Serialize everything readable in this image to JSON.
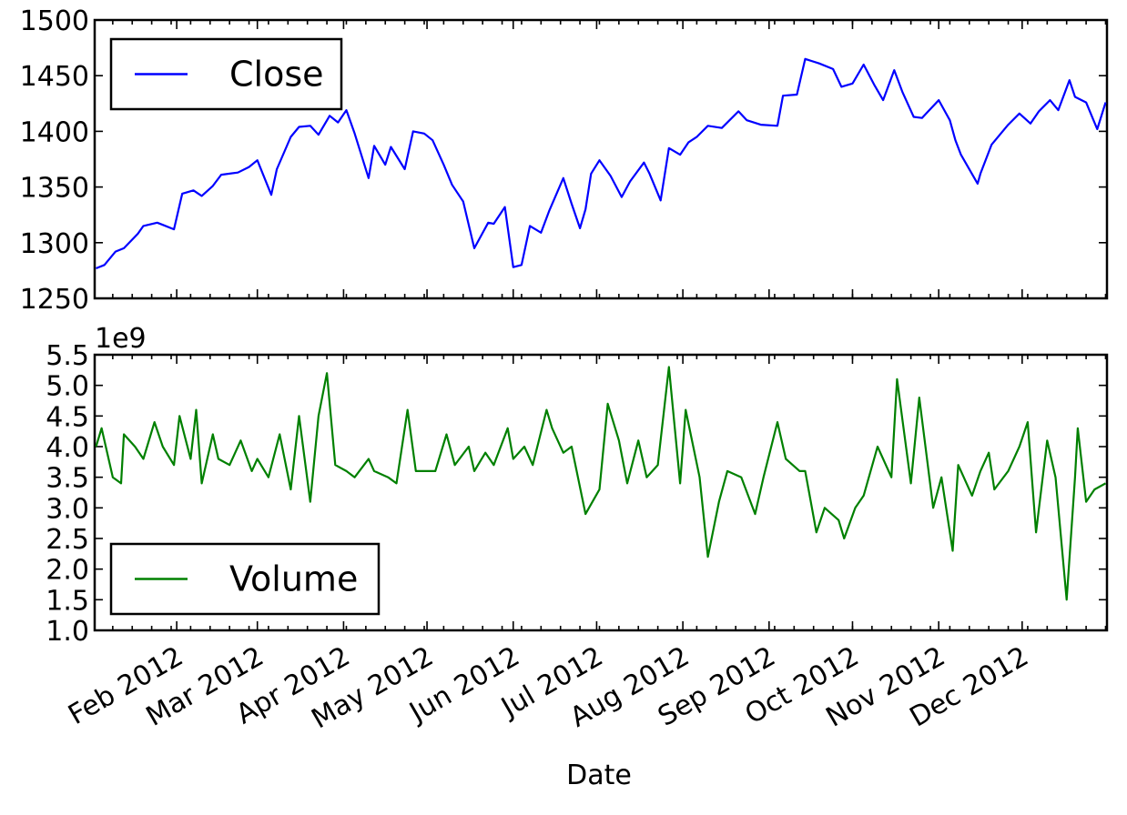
{
  "chart_data": [
    {
      "type": "line",
      "panel": "top",
      "title": "",
      "xlabel": "",
      "ylabel": "",
      "ylim": [
        1250,
        1500
      ],
      "yticks": [
        "1250",
        "1300",
        "1350",
        "1400",
        "1450",
        "1500"
      ],
      "x_range": [
        "2012-01-03",
        "2012-12-31"
      ],
      "grid": false,
      "legend": {
        "entries": [
          "Close"
        ],
        "placement": "upper left"
      },
      "series": [
        {
          "name": "Close",
          "color": "#0000ff",
          "x": [
            "2012-01-03",
            "2012-01-06",
            "2012-01-10",
            "2012-01-13",
            "2012-01-18",
            "2012-01-20",
            "2012-01-25",
            "2012-01-27",
            "2012-01-31",
            "2012-02-03",
            "2012-02-07",
            "2012-02-10",
            "2012-02-14",
            "2012-02-17",
            "2012-02-23",
            "2012-02-27",
            "2012-03-01",
            "2012-03-06",
            "2012-03-08",
            "2012-03-13",
            "2012-03-16",
            "2012-03-20",
            "2012-03-23",
            "2012-03-27",
            "2012-03-30",
            "2012-04-02",
            "2012-04-05",
            "2012-04-10",
            "2012-04-12",
            "2012-04-16",
            "2012-04-18",
            "2012-04-23",
            "2012-04-26",
            "2012-04-30",
            "2012-05-03",
            "2012-05-07",
            "2012-05-10",
            "2012-05-14",
            "2012-05-18",
            "2012-05-23",
            "2012-05-25",
            "2012-05-29",
            "2012-06-01",
            "2012-06-04",
            "2012-06-07",
            "2012-06-11",
            "2012-06-14",
            "2012-06-19",
            "2012-06-22",
            "2012-06-25",
            "2012-06-27",
            "2012-06-29",
            "2012-07-02",
            "2012-07-06",
            "2012-07-10",
            "2012-07-13",
            "2012-07-18",
            "2012-07-20",
            "2012-07-24",
            "2012-07-27",
            "2012-07-31",
            "2012-08-03",
            "2012-08-06",
            "2012-08-10",
            "2012-08-15",
            "2012-08-21",
            "2012-08-24",
            "2012-08-29",
            "2012-09-04",
            "2012-09-06",
            "2012-09-11",
            "2012-09-14",
            "2012-09-19",
            "2012-09-24",
            "2012-09-27",
            "2012-10-01",
            "2012-10-05",
            "2012-10-09",
            "2012-10-12",
            "2012-10-16",
            "2012-10-19",
            "2012-10-23",
            "2012-10-26",
            "2012-11-01",
            "2012-11-05",
            "2012-11-07",
            "2012-11-09",
            "2012-11-15",
            "2012-11-16",
            "2012-11-20",
            "2012-11-26",
            "2012-11-30",
            "2012-12-04",
            "2012-12-07",
            "2012-12-11",
            "2012-12-14",
            "2012-12-18",
            "2012-12-20",
            "2012-12-24",
            "2012-12-28",
            "2012-12-31"
          ],
          "y": [
            1277,
            1280,
            1292,
            1295,
            1308,
            1315,
            1318,
            1316,
            1312,
            1344,
            1347,
            1342,
            1351,
            1361,
            1363,
            1368,
            1374,
            1343,
            1366,
            1395,
            1404,
            1405,
            1397,
            1414,
            1408,
            1419,
            1398,
            1358,
            1387,
            1370,
            1386,
            1366,
            1400,
            1398,
            1392,
            1370,
            1352,
            1337,
            1295,
            1318,
            1317,
            1332,
            1278,
            1280,
            1315,
            1309,
            1329,
            1358,
            1335,
            1313,
            1330,
            1362,
            1374,
            1360,
            1341,
            1355,
            1372,
            1362,
            1338,
            1385,
            1379,
            1390,
            1395,
            1405,
            1403,
            1418,
            1410,
            1406,
            1405,
            1432,
            1433,
            1465,
            1461,
            1456,
            1440,
            1443,
            1460,
            1441,
            1428,
            1455,
            1435,
            1413,
            1412,
            1428,
            1410,
            1392,
            1379,
            1353,
            1362,
            1388,
            1406,
            1416,
            1407,
            1418,
            1428,
            1419,
            1446,
            1431,
            1426,
            1402,
            1426
          ]
        }
      ]
    },
    {
      "type": "line",
      "panel": "bottom",
      "title": "",
      "xlabel": "Date",
      "ylabel": "",
      "scale_label": "1e9",
      "ylim": [
        1.0,
        5.5
      ],
      "yticks": [
        "1.0",
        "1.5",
        "2.0",
        "2.5",
        "3.0",
        "3.5",
        "4.0",
        "4.5",
        "5.0",
        "5.5"
      ],
      "x_range": [
        "2012-01-03",
        "2012-12-31"
      ],
      "xtick_labels": [
        "Feb 2012",
        "Mar 2012",
        "Apr 2012",
        "May 2012",
        "Jun 2012",
        "Jul 2012",
        "Aug 2012",
        "Sep 2012",
        "Oct 2012",
        "Nov 2012",
        "Dec 2012"
      ],
      "xtick_dates": [
        "2012-02-01",
        "2012-03-01",
        "2012-04-01",
        "2012-05-01",
        "2012-06-01",
        "2012-07-01",
        "2012-08-01",
        "2012-09-01",
        "2012-10-01",
        "2012-11-01",
        "2012-12-01"
      ],
      "grid": false,
      "legend": {
        "entries": [
          "Volume"
        ],
        "placement": "lower left"
      },
      "series": [
        {
          "name": "Volume",
          "color": "#008000",
          "x": [
            "2012-01-03",
            "2012-01-05",
            "2012-01-09",
            "2012-01-12",
            "2012-01-13",
            "2012-01-17",
            "2012-01-20",
            "2012-01-24",
            "2012-01-27",
            "2012-01-31",
            "2012-02-02",
            "2012-02-06",
            "2012-02-08",
            "2012-02-10",
            "2012-02-14",
            "2012-02-16",
            "2012-02-20",
            "2012-02-24",
            "2012-02-28",
            "2012-03-01",
            "2012-03-05",
            "2012-03-09",
            "2012-03-13",
            "2012-03-16",
            "2012-03-20",
            "2012-03-23",
            "2012-03-26",
            "2012-03-29",
            "2012-04-02",
            "2012-04-05",
            "2012-04-10",
            "2012-04-12",
            "2012-04-17",
            "2012-04-20",
            "2012-04-24",
            "2012-04-27",
            "2012-05-01",
            "2012-05-04",
            "2012-05-08",
            "2012-05-11",
            "2012-05-16",
            "2012-05-18",
            "2012-05-22",
            "2012-05-25",
            "2012-05-30",
            "2012-06-01",
            "2012-06-05",
            "2012-06-08",
            "2012-06-13",
            "2012-06-15",
            "2012-06-19",
            "2012-06-22",
            "2012-06-27",
            "2012-07-02",
            "2012-07-05",
            "2012-07-09",
            "2012-07-12",
            "2012-07-16",
            "2012-07-19",
            "2012-07-23",
            "2012-07-27",
            "2012-07-31",
            "2012-08-02",
            "2012-08-07",
            "2012-08-10",
            "2012-08-14",
            "2012-08-17",
            "2012-08-22",
            "2012-08-27",
            "2012-08-30",
            "2012-09-04",
            "2012-09-07",
            "2012-09-12",
            "2012-09-14",
            "2012-09-18",
            "2012-09-21",
            "2012-09-26",
            "2012-09-28",
            "2012-10-02",
            "2012-10-05",
            "2012-10-10",
            "2012-10-15",
            "2012-10-17",
            "2012-10-22",
            "2012-10-25",
            "2012-10-30",
            "2012-11-02",
            "2012-11-06",
            "2012-11-08",
            "2012-11-13",
            "2012-11-16",
            "2012-11-19",
            "2012-11-21",
            "2012-11-26",
            "2012-11-30",
            "2012-12-03",
            "2012-12-06",
            "2012-12-10",
            "2012-12-13",
            "2012-12-17",
            "2012-12-20",
            "2012-12-21",
            "2012-12-24",
            "2012-12-27",
            "2012-12-31"
          ],
          "y": [
            4.0,
            4.3,
            3.5,
            3.4,
            4.2,
            4.0,
            3.8,
            4.4,
            4.0,
            3.7,
            4.5,
            3.8,
            4.6,
            3.4,
            4.2,
            3.8,
            3.7,
            4.1,
            3.6,
            3.8,
            3.5,
            4.2,
            3.3,
            4.5,
            3.1,
            4.5,
            5.2,
            3.7,
            3.6,
            3.5,
            3.8,
            3.6,
            3.5,
            3.4,
            4.6,
            3.6,
            3.6,
            3.6,
            4.2,
            3.7,
            4.0,
            3.6,
            3.9,
            3.7,
            4.3,
            3.8,
            4.0,
            3.7,
            4.6,
            4.3,
            3.9,
            4.0,
            2.9,
            3.3,
            4.7,
            4.1,
            3.4,
            4.1,
            3.5,
            3.7,
            5.3,
            3.4,
            4.6,
            3.5,
            2.2,
            3.1,
            3.6,
            3.5,
            2.9,
            3.5,
            4.4,
            3.8,
            3.6,
            3.6,
            2.6,
            3.0,
            2.8,
            2.5,
            3.0,
            3.2,
            4.0,
            3.5,
            5.1,
            3.4,
            4.8,
            3.0,
            3.5,
            2.3,
            3.7,
            3.2,
            3.6,
            3.9,
            3.3,
            3.6,
            4.0,
            4.4,
            2.6,
            4.1,
            3.5,
            1.5,
            3.5,
            4.3,
            3.1,
            3.3,
            3.4
          ]
        }
      ]
    }
  ]
}
